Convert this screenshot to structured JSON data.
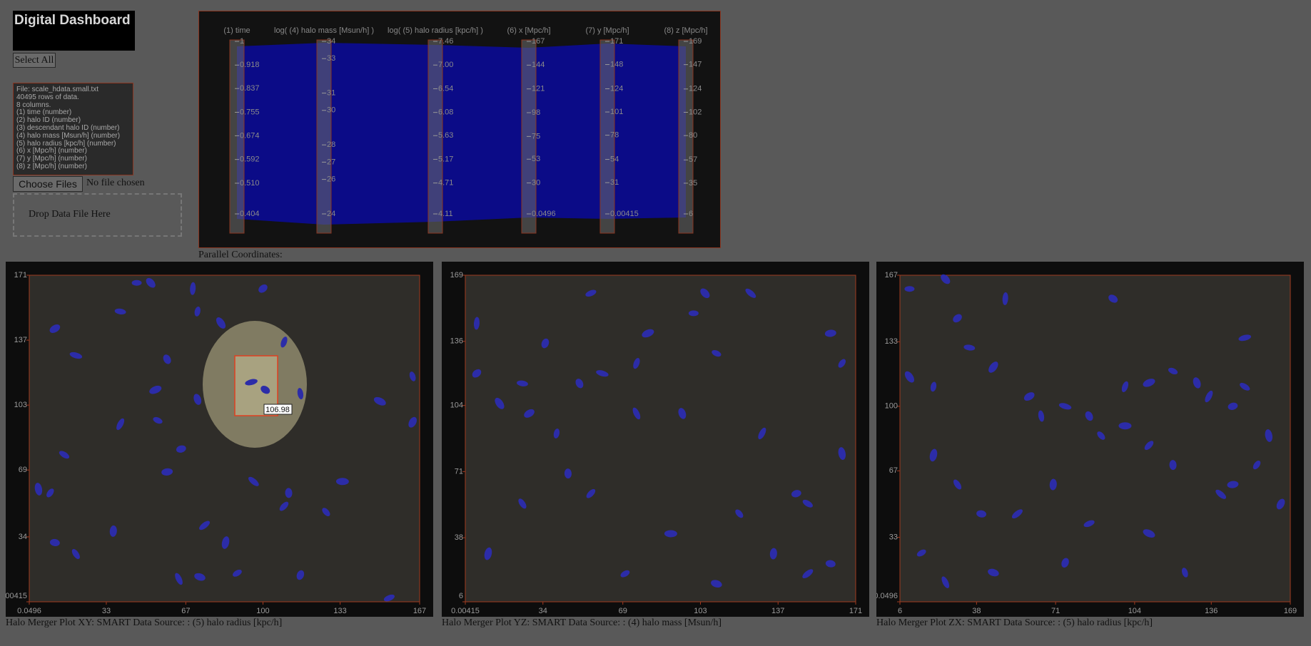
{
  "header": {
    "title": "Digital Dashboard",
    "select_all": "Select All"
  },
  "file_info": {
    "lines": [
      "File: scale_hdata.small.txt",
      "40495 rows of data.",
      "8 columns.",
      "(1) time (number)",
      "(2) halo ID (number)",
      "(3) descendant halo ID (number)",
      "(4) halo mass [Msun/h] (number)",
      "(5) halo radius [kpc/h] (number)",
      "(6) x [Mpc/h] (number)",
      "(7) y [Mpc/h] (number)",
      "(8) z [Mpc/h] (number)"
    ]
  },
  "file_input": {
    "button": "Choose Files",
    "status": "No file chosen"
  },
  "drop_zone": "Drop Data File Here",
  "parallel": {
    "label": "Parallel Coordinates:",
    "axes": [
      {
        "name": "(1) time",
        "ticks": [
          1,
          0.918,
          0.837,
          0.755,
          0.674,
          0.592,
          {
            "value": 0.51,
            "label": "0.510"
          },
          0.404
        ]
      },
      {
        "name": "log(  (4) halo mass [Msun/h] )",
        "ticks": [
          34,
          33,
          31,
          30,
          28,
          27,
          26,
          24
        ]
      },
      {
        "name": "log(  (5) halo radius [kpc/h] )",
        "ticks": [
          7.46,
          {
            "value": 7,
            "label": "7.00"
          },
          6.54,
          6.08,
          5.63,
          5.17,
          4.71,
          4.11
        ]
      },
      {
        "name": "(6) x [Mpc/h]",
        "ticks": [
          167,
          144,
          121,
          98,
          75,
          53,
          30,
          0.0496
        ]
      },
      {
        "name": "(7) y [Mpc/h]",
        "ticks": [
          171,
          148,
          124,
          101,
          78,
          54,
          31,
          0.00415
        ]
      },
      {
        "name": "(8) z [Mpc/h]",
        "ticks": [
          169,
          147,
          124,
          102,
          80,
          57,
          35,
          6
        ]
      }
    ]
  },
  "plots": [
    {
      "caption": "Halo Merger Plot XY: SMART Data Source: : (5) halo radius [kpc/h]",
      "xticks": [
        0.0496,
        33,
        67,
        100,
        133,
        167
      ],
      "yticks": [
        171,
        137,
        103,
        69,
        34,
        0.00415
      ],
      "lens_label": "106.98",
      "x": [
        46,
        52,
        70,
        100,
        39,
        82,
        72,
        11,
        20,
        59,
        109,
        54,
        55,
        72,
        39,
        65,
        15,
        4,
        9,
        59,
        96,
        111,
        109,
        134,
        127,
        36,
        75,
        11,
        20,
        84,
        89,
        73,
        64,
        116,
        154,
        150,
        164,
        164,
        95,
        101,
        116
      ],
      "y": [
        167,
        167,
        164,
        164,
        152,
        146,
        152,
        143,
        129,
        127,
        136,
        111,
        95,
        106,
        93,
        80,
        77,
        59,
        57,
        68,
        63,
        57,
        50,
        63,
        47,
        37,
        40,
        31,
        25,
        31,
        15,
        13,
        12,
        14,
        2,
        105,
        118,
        94,
        115,
        111,
        109
      ]
    },
    {
      "caption": "Halo Merger Plot YZ: SMART Data Source: : (4) halo mass [Msun/h]",
      "xticks": [
        0.00415,
        34,
        69,
        103,
        137,
        171
      ],
      "yticks": [
        169,
        136,
        104,
        71,
        38,
        6
      ],
      "x": [
        100,
        105,
        5,
        5,
        25,
        15,
        40,
        28,
        60,
        50,
        75,
        80,
        110,
        95,
        130,
        145,
        150,
        165,
        165,
        160,
        125,
        45,
        55,
        90,
        120,
        135,
        150,
        160,
        25,
        10,
        70,
        110,
        75,
        35,
        55
      ],
      "y": [
        150,
        160,
        145,
        120,
        115,
        105,
        90,
        100,
        120,
        115,
        125,
        140,
        130,
        100,
        90,
        60,
        55,
        80,
        125,
        140,
        160,
        70,
        60,
        40,
        50,
        30,
        20,
        25,
        55,
        30,
        20,
        15,
        100,
        135,
        160
      ]
    },
    {
      "caption": "Halo Merger Plot ZX: SMART Data Source: : (5) halo radius [kpc/h]",
      "xticks": [
        6,
        38,
        71,
        104,
        136,
        169
      ],
      "yticks": [
        167,
        133,
        100,
        67,
        33,
        0.0496
      ],
      "x": [
        10,
        25,
        50,
        30,
        35,
        10,
        20,
        60,
        75,
        85,
        100,
        110,
        120,
        130,
        135,
        145,
        150,
        160,
        155,
        145,
        140,
        120,
        110,
        100,
        90,
        70,
        55,
        40,
        30,
        20,
        15,
        45,
        25,
        75,
        85,
        110,
        125,
        165,
        150,
        95,
        65,
        45
      ],
      "y": [
        160,
        165,
        155,
        145,
        130,
        115,
        110,
        105,
        100,
        95,
        110,
        112,
        118,
        112,
        105,
        100,
        110,
        85,
        70,
        60,
        55,
        70,
        80,
        90,
        85,
        60,
        45,
        45,
        60,
        75,
        25,
        15,
        10,
        20,
        40,
        35,
        15,
        50,
        135,
        155,
        95,
        120
      ]
    }
  ]
}
